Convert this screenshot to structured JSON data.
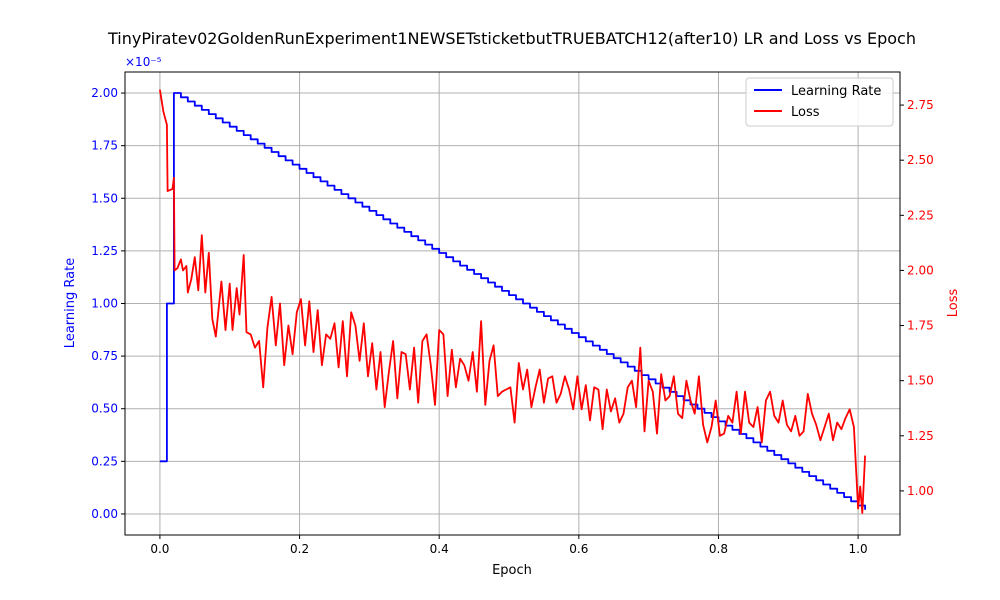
{
  "chart_data": {
    "type": "line",
    "title": "TinyPiratev02GoldenRunExperiment1NEWSETsticketbutTRUEBATCH12(after10) LR and Loss vs Epoch",
    "xlabel": "Epoch",
    "ylabel_left": "Learning Rate",
    "ylabel_right": "Loss",
    "left_scale_label": "×10⁻⁵",
    "xlim": [
      -0.05,
      1.06
    ],
    "ylim_left": [
      -0.1,
      2.1
    ],
    "ylim_right": [
      0.8,
      2.9
    ],
    "xticks": [
      0.0,
      0.2,
      0.4,
      0.6,
      0.8,
      1.0
    ],
    "xtick_labels": [
      "0.0",
      "0.2",
      "0.4",
      "0.6",
      "0.8",
      "1.0"
    ],
    "yticks_left": [
      0.0,
      0.25,
      0.5,
      0.75,
      1.0,
      1.25,
      1.5,
      1.75,
      2.0
    ],
    "ytick_labels_left": [
      "0.00",
      "0.25",
      "0.50",
      "0.75",
      "1.00",
      "1.25",
      "1.50",
      "1.75",
      "2.00"
    ],
    "yticks_right": [
      1.0,
      1.25,
      1.5,
      1.75,
      2.0,
      2.25,
      2.5,
      2.75
    ],
    "ytick_labels_right": [
      "1.00",
      "1.25",
      "1.50",
      "1.75",
      "2.00",
      "2.25",
      "2.50",
      "2.75"
    ],
    "grid": true,
    "legend_position": "top-right",
    "colors": {
      "lr": "#0000ff",
      "loss": "#ff0000",
      "axis": "#000000",
      "grid": "#b0b0b0"
    },
    "series": [
      {
        "name": "Learning Rate",
        "axis": "left",
        "color": "#0000ff",
        "style": "step",
        "x": [
          0.0,
          0.01,
          0.01,
          0.02,
          0.02,
          0.03,
          0.04,
          0.05,
          0.06,
          0.07,
          0.08,
          0.09,
          0.1,
          0.11,
          0.12,
          0.13,
          0.14,
          0.15,
          0.16,
          0.17,
          0.18,
          0.19,
          0.2,
          0.21,
          0.22,
          0.23,
          0.24,
          0.25,
          0.26,
          0.27,
          0.28,
          0.29,
          0.3,
          0.31,
          0.32,
          0.33,
          0.34,
          0.35,
          0.36,
          0.37,
          0.38,
          0.39,
          0.4,
          0.41,
          0.42,
          0.43,
          0.44,
          0.45,
          0.46,
          0.47,
          0.48,
          0.49,
          0.5,
          0.51,
          0.52,
          0.53,
          0.54,
          0.55,
          0.56,
          0.57,
          0.58,
          0.59,
          0.6,
          0.61,
          0.62,
          0.63,
          0.64,
          0.65,
          0.66,
          0.67,
          0.68,
          0.69,
          0.7,
          0.71,
          0.72,
          0.73,
          0.74,
          0.75,
          0.76,
          0.77,
          0.78,
          0.79,
          0.8,
          0.81,
          0.82,
          0.83,
          0.84,
          0.85,
          0.86,
          0.87,
          0.88,
          0.89,
          0.9,
          0.91,
          0.92,
          0.93,
          0.94,
          0.95,
          0.96,
          0.97,
          0.98,
          0.99,
          1.0,
          1.01
        ],
        "y": [
          0.25,
          0.5,
          1.0,
          1.25,
          2.0,
          1.98,
          1.96,
          1.94,
          1.92,
          1.9,
          1.88,
          1.86,
          1.84,
          1.82,
          1.8,
          1.78,
          1.76,
          1.74,
          1.72,
          1.7,
          1.68,
          1.66,
          1.64,
          1.62,
          1.6,
          1.58,
          1.56,
          1.54,
          1.52,
          1.5,
          1.48,
          1.46,
          1.44,
          1.42,
          1.4,
          1.38,
          1.36,
          1.34,
          1.32,
          1.3,
          1.28,
          1.26,
          1.24,
          1.22,
          1.2,
          1.18,
          1.16,
          1.14,
          1.12,
          1.1,
          1.08,
          1.06,
          1.04,
          1.02,
          1.0,
          0.98,
          0.96,
          0.94,
          0.92,
          0.9,
          0.88,
          0.86,
          0.84,
          0.82,
          0.8,
          0.78,
          0.76,
          0.74,
          0.72,
          0.7,
          0.68,
          0.66,
          0.64,
          0.62,
          0.6,
          0.58,
          0.56,
          0.54,
          0.52,
          0.5,
          0.48,
          0.46,
          0.44,
          0.42,
          0.4,
          0.38,
          0.36,
          0.34,
          0.32,
          0.3,
          0.28,
          0.26,
          0.24,
          0.22,
          0.2,
          0.18,
          0.16,
          0.14,
          0.12,
          0.1,
          0.08,
          0.06,
          0.04,
          0.02
        ]
      },
      {
        "name": "Loss",
        "axis": "right",
        "color": "#ff0000",
        "style": "line",
        "x": [
          0.0,
          0.005,
          0.01,
          0.011,
          0.018,
          0.02,
          0.021,
          0.025,
          0.03,
          0.033,
          0.038,
          0.04,
          0.045,
          0.05,
          0.055,
          0.06,
          0.065,
          0.07,
          0.075,
          0.08,
          0.088,
          0.094,
          0.1,
          0.104,
          0.11,
          0.114,
          0.12,
          0.124,
          0.13,
          0.136,
          0.142,
          0.148,
          0.154,
          0.16,
          0.166,
          0.172,
          0.178,
          0.184,
          0.19,
          0.196,
          0.202,
          0.208,
          0.214,
          0.22,
          0.226,
          0.232,
          0.238,
          0.244,
          0.25,
          0.256,
          0.262,
          0.268,
          0.274,
          0.28,
          0.286,
          0.292,
          0.298,
          0.304,
          0.31,
          0.316,
          0.322,
          0.328,
          0.334,
          0.34,
          0.346,
          0.352,
          0.358,
          0.364,
          0.37,
          0.376,
          0.382,
          0.388,
          0.394,
          0.4,
          0.406,
          0.412,
          0.418,
          0.424,
          0.43,
          0.436,
          0.442,
          0.448,
          0.454,
          0.46,
          0.466,
          0.472,
          0.478,
          0.484,
          0.49,
          0.496,
          0.502,
          0.508,
          0.514,
          0.52,
          0.526,
          0.532,
          0.538,
          0.544,
          0.55,
          0.556,
          0.562,
          0.568,
          0.574,
          0.58,
          0.586,
          0.592,
          0.598,
          0.604,
          0.61,
          0.616,
          0.622,
          0.628,
          0.634,
          0.64,
          0.646,
          0.652,
          0.658,
          0.664,
          0.67,
          0.676,
          0.682,
          0.688,
          0.694,
          0.7,
          0.706,
          0.712,
          0.718,
          0.724,
          0.73,
          0.736,
          0.742,
          0.748,
          0.754,
          0.76,
          0.766,
          0.772,
          0.778,
          0.784,
          0.79,
          0.796,
          0.802,
          0.808,
          0.814,
          0.82,
          0.826,
          0.832,
          0.838,
          0.844,
          0.85,
          0.856,
          0.862,
          0.868,
          0.874,
          0.88,
          0.886,
          0.892,
          0.898,
          0.904,
          0.91,
          0.916,
          0.922,
          0.928,
          0.934,
          0.94,
          0.946,
          0.952,
          0.958,
          0.964,
          0.97,
          0.976,
          0.982,
          0.988,
          0.994,
          1.0,
          1.003,
          1.006,
          1.01
        ],
        "y": [
          2.82,
          2.72,
          2.66,
          2.36,
          2.37,
          2.42,
          2.0,
          2.01,
          2.05,
          2.0,
          2.02,
          1.9,
          1.96,
          2.06,
          1.91,
          2.16,
          1.9,
          2.08,
          1.78,
          1.7,
          1.95,
          1.73,
          1.94,
          1.73,
          1.92,
          1.8,
          2.07,
          1.72,
          1.71,
          1.65,
          1.68,
          1.47,
          1.74,
          1.88,
          1.66,
          1.85,
          1.57,
          1.75,
          1.62,
          1.81,
          1.87,
          1.66,
          1.86,
          1.63,
          1.82,
          1.57,
          1.71,
          1.69,
          1.76,
          1.56,
          1.77,
          1.52,
          1.81,
          1.75,
          1.59,
          1.76,
          1.52,
          1.67,
          1.46,
          1.63,
          1.38,
          1.54,
          1.68,
          1.42,
          1.63,
          1.62,
          1.46,
          1.65,
          1.4,
          1.68,
          1.71,
          1.57,
          1.39,
          1.73,
          1.71,
          1.43,
          1.64,
          1.47,
          1.6,
          1.57,
          1.5,
          1.63,
          1.45,
          1.77,
          1.39,
          1.59,
          1.66,
          1.43,
          1.45,
          1.46,
          1.47,
          1.31,
          1.58,
          1.46,
          1.55,
          1.38,
          1.47,
          1.55,
          1.4,
          1.51,
          1.52,
          1.4,
          1.44,
          1.52,
          1.46,
          1.37,
          1.52,
          1.37,
          1.48,
          1.32,
          1.47,
          1.46,
          1.28,
          1.46,
          1.36,
          1.42,
          1.31,
          1.35,
          1.47,
          1.5,
          1.38,
          1.65,
          1.27,
          1.5,
          1.45,
          1.26,
          1.53,
          1.41,
          1.43,
          1.52,
          1.35,
          1.33,
          1.5,
          1.41,
          1.35,
          1.52,
          1.3,
          1.22,
          1.29,
          1.41,
          1.25,
          1.26,
          1.34,
          1.31,
          1.45,
          1.26,
          1.45,
          1.31,
          1.29,
          1.38,
          1.22,
          1.41,
          1.45,
          1.34,
          1.31,
          1.41,
          1.3,
          1.27,
          1.34,
          1.25,
          1.27,
          1.44,
          1.35,
          1.3,
          1.23,
          1.29,
          1.35,
          1.23,
          1.31,
          1.28,
          1.33,
          1.37,
          1.29,
          0.92,
          1.02,
          0.9,
          1.16
        ]
      }
    ]
  }
}
